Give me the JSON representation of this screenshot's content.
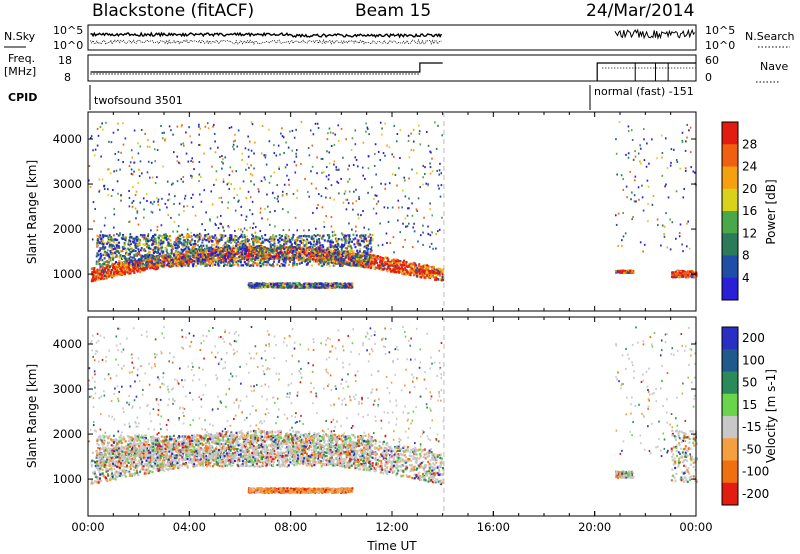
{
  "header": {
    "station": "Blackstone (fitACF)",
    "beam": "Beam 15",
    "date": "24/Mar/2014"
  },
  "top_panels": {
    "noise": {
      "left_label": "N.Sky",
      "right_label": "N.Search",
      "left_ticks": [
        "10^5",
        "10^0"
      ],
      "right_ticks": [
        "10^5",
        "10^0"
      ]
    },
    "freq": {
      "left_label_1": "Freq.",
      "left_label_2": "[MHz]",
      "right_label": "Nave",
      "left_ticks": [
        "18",
        "8"
      ],
      "right_ticks": [
        "60",
        "0"
      ]
    },
    "cpid": {
      "label": "CPID",
      "mode_1": "twofsound 3501",
      "mode_2": "normal (fast) -151"
    }
  },
  "chart_data": [
    {
      "type": "heatmap",
      "title": "Power",
      "xlabel": "",
      "ylabel": "Slant Range [km]",
      "x_ticks": [
        "00:00",
        "04:00",
        "08:00",
        "12:00",
        "16:00",
        "20:00",
        "00:00"
      ],
      "y_ticks": [
        1000,
        2000,
        3000,
        4000
      ],
      "xlim_hours": [
        0,
        24
      ],
      "ylim_km": [
        180,
        4600
      ],
      "colorbar": {
        "label": "Power [dB]",
        "ticks": [
          "4",
          "8",
          "12",
          "16",
          "20",
          "24",
          "28"
        ],
        "colors": [
          "#2a1fd6",
          "#1f4ea8",
          "#2b7a5a",
          "#4aa84a",
          "#d9d21a",
          "#f5a00e",
          "#f06010",
          "#e41c10"
        ]
      },
      "echo_bands": [
        {
          "t0": 0.1,
          "t1": 14.0,
          "r_start": 850,
          "r_end": 1150,
          "dominant": "hot"
        },
        {
          "t0": 0.3,
          "t1": 11.2,
          "r_start": 1200,
          "r_end": 1900,
          "dominant": "mid"
        },
        {
          "t0": 6.3,
          "t1": 10.4,
          "r_start": 720,
          "r_end": 820,
          "dominant": "mid"
        },
        {
          "t0": 20.8,
          "t1": 21.5,
          "r_start": 1050,
          "r_end": 1100,
          "dominant": "hot"
        },
        {
          "t0": 23.0,
          "t1": 24.0,
          "r_start": 950,
          "r_end": 1100,
          "dominant": "hot"
        }
      ]
    },
    {
      "type": "heatmap",
      "title": "Velocity",
      "xlabel": "Time UT",
      "ylabel": "Slant Range [km]",
      "x_ticks": [
        "00:00",
        "04:00",
        "08:00",
        "12:00",
        "16:00",
        "20:00",
        "00:00"
      ],
      "y_ticks": [
        1000,
        2000,
        3000,
        4000
      ],
      "xlim_hours": [
        0,
        24
      ],
      "ylim_km": [
        180,
        4600
      ],
      "colorbar": {
        "label": "Velocity [m s-1]",
        "ticks": [
          "200",
          "100",
          "50",
          "15",
          "-15",
          "-50",
          "-100",
          "-200"
        ],
        "colors": [
          "#2a2fc4",
          "#1f5a8a",
          "#2b8a5a",
          "#6ad44a",
          "#c8c8c8",
          "#f5a040",
          "#f07010",
          "#e41c10"
        ]
      },
      "echo_bands": [
        {
          "t0": 0.1,
          "t1": 14.0,
          "r_start": 900,
          "r_end": 1600,
          "dominant": "gray"
        },
        {
          "t0": 0.3,
          "t1": 11.2,
          "r_start": 1300,
          "r_end": 2000,
          "dominant": "gray"
        },
        {
          "t0": 6.3,
          "t1": 10.4,
          "r_start": 720,
          "r_end": 820,
          "dominant": "orange"
        },
        {
          "t0": 20.8,
          "t1": 21.5,
          "r_start": 1050,
          "r_end": 1200,
          "dominant": "gray"
        },
        {
          "t0": 23.0,
          "t1": 24.0,
          "r_start": 950,
          "r_end": 2100,
          "dominant": "gray"
        }
      ]
    }
  ]
}
